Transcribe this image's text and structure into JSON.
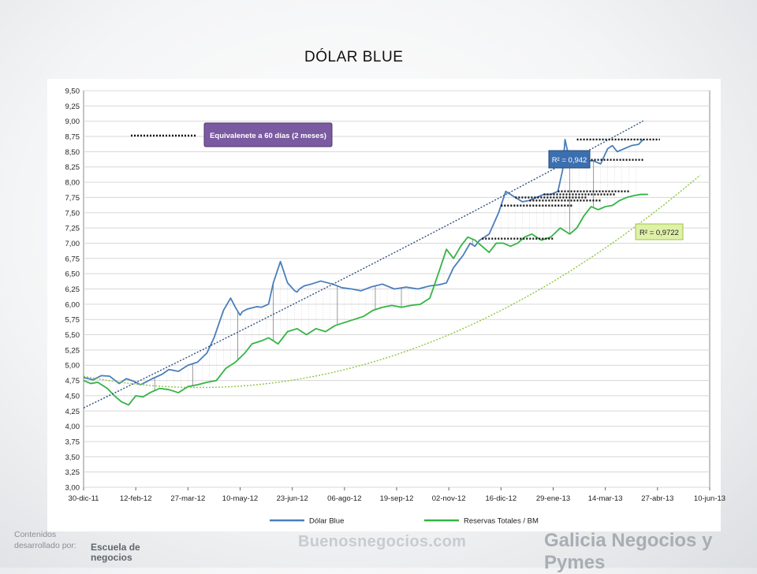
{
  "slide": {
    "title": "DÓLAR BLUE",
    "footer_contenidos": "Contenidos",
    "footer_desarrollado": "desarrollado por:",
    "footer_brand_line1": "Escuela de",
    "footer_brand_line2": "negocios",
    "logo_mid": "Buenosnegocios.com",
    "logo_right": "Galicia Negocios y Pymes"
  },
  "chart_data": {
    "type": "line",
    "title": "",
    "xlabel": "",
    "ylabel": "",
    "ylim": [
      3.0,
      9.5
    ],
    "y_ticks": [
      "3,00",
      "3,25",
      "3,50",
      "3,75",
      "4,00",
      "4,25",
      "4,50",
      "4,75",
      "5,00",
      "5,25",
      "5,50",
      "5,75",
      "6,00",
      "6,25",
      "6,50",
      "6,75",
      "7,00",
      "7,25",
      "7,50",
      "7,75",
      "8,00",
      "8,25",
      "8,50",
      "8,75",
      "9,00",
      "9,25",
      "9,50"
    ],
    "x_ticks": [
      "30-dic-11",
      "12-feb-12",
      "27-mar-12",
      "10-may-12",
      "23-jun-12",
      "06-ago-12",
      "19-sep-12",
      "02-nov-12",
      "16-dic-12",
      "29-ene-13",
      "14-mar-13",
      "27-abr-13",
      "10-jun-13"
    ],
    "xlim_days": [
      0,
      528
    ],
    "grid": true,
    "legend_position": "bottom",
    "series": [
      {
        "name": "Dólar Blue",
        "color": "#4a7ebb",
        "x_days": [
          0,
          8,
          15,
          22,
          30,
          36,
          42,
          48,
          52,
          58,
          66,
          72,
          80,
          88,
          96,
          104,
          110,
          118,
          124,
          128,
          132,
          134,
          136,
          138,
          142,
          146,
          150,
          156,
          160,
          166,
          172,
          178,
          180,
          182,
          186,
          192,
          200,
          210,
          218,
          226,
          234,
          242,
          252,
          262,
          272,
          282,
          292,
          300,
          306,
          312,
          320,
          326,
          330,
          334,
          338,
          342,
          350,
          356,
          364,
          370,
          376,
          382,
          388,
          394,
          400,
          404,
          406,
          410,
          416,
          424,
          430,
          436,
          442,
          446,
          450,
          456,
          462,
          468,
          472
        ],
        "y": [
          4.8,
          4.76,
          4.83,
          4.82,
          4.7,
          4.78,
          4.74,
          4.68,
          4.72,
          4.78,
          4.85,
          4.93,
          4.9,
          5.0,
          5.05,
          5.2,
          5.45,
          5.9,
          6.1,
          5.95,
          5.82,
          5.88,
          5.9,
          5.92,
          5.94,
          5.96,
          5.95,
          6.0,
          6.35,
          6.7,
          6.35,
          6.22,
          6.2,
          6.25,
          6.3,
          6.33,
          6.38,
          6.33,
          6.27,
          6.25,
          6.22,
          6.28,
          6.33,
          6.25,
          6.28,
          6.25,
          6.3,
          6.32,
          6.35,
          6.6,
          6.8,
          7.0,
          6.95,
          7.05,
          7.1,
          7.15,
          7.5,
          7.85,
          7.75,
          7.68,
          7.7,
          7.75,
          7.8,
          7.8,
          7.85,
          8.2,
          8.7,
          8.35,
          8.4,
          8.35,
          8.35,
          8.3,
          8.55,
          8.6,
          8.5,
          8.55,
          8.6,
          8.62,
          8.7
        ]
      },
      {
        "name": "Reservas Totales / BM",
        "color": "#33b444",
        "x_days": [
          0,
          6,
          12,
          20,
          26,
          32,
          38,
          44,
          50,
          56,
          64,
          72,
          80,
          88,
          96,
          104,
          112,
          120,
          128,
          136,
          142,
          150,
          156,
          164,
          172,
          180,
          188,
          196,
          204,
          212,
          220,
          228,
          236,
          244,
          252,
          260,
          268,
          276,
          284,
          292,
          300,
          306,
          312,
          318,
          324,
          330,
          336,
          342,
          348,
          354,
          360,
          366,
          372,
          378,
          386,
          394,
          402,
          410,
          416,
          422,
          428,
          434,
          440,
          446,
          452,
          458,
          464,
          470,
          476
        ],
        "y": [
          4.75,
          4.7,
          4.72,
          4.62,
          4.5,
          4.4,
          4.35,
          4.5,
          4.48,
          4.55,
          4.62,
          4.6,
          4.55,
          4.65,
          4.68,
          4.72,
          4.75,
          4.95,
          5.05,
          5.2,
          5.35,
          5.4,
          5.45,
          5.35,
          5.55,
          5.6,
          5.5,
          5.6,
          5.55,
          5.65,
          5.7,
          5.75,
          5.8,
          5.9,
          5.95,
          5.98,
          5.95,
          5.98,
          6.0,
          6.1,
          6.55,
          6.9,
          6.75,
          6.95,
          7.1,
          7.05,
          6.95,
          6.85,
          7.0,
          7.0,
          6.95,
          7.0,
          7.1,
          7.15,
          7.05,
          7.1,
          7.25,
          7.15,
          7.25,
          7.45,
          7.6,
          7.55,
          7.6,
          7.62,
          7.7,
          7.75,
          7.78,
          7.8,
          7.8
        ]
      }
    ],
    "trendlines": [
      {
        "series": "Dólar Blue",
        "color": "#2f4f7f",
        "x_range": [
          0,
          474
        ],
        "coeffs": [
          4.3,
          0.0094,
          1.2e-06
        ]
      },
      {
        "series": "Reservas Totales / BM",
        "color": "#8dc63f",
        "x_range": [
          0,
          522
        ],
        "coeffs": [
          4.82,
          -0.0038,
          1.95e-05
        ]
      }
    ],
    "annotations": {
      "callout": "Equivalenete a 60 días (2 meses)",
      "r2_blue": "R² = 0,942",
      "r2_green": "R² = 0,9722"
    },
    "gap_markers_days": [
      412,
      400,
      388,
      376,
      364,
      352,
      336
    ],
    "legend_labels": [
      "Dólar Blue",
      "Reservas Totales / BM"
    ]
  }
}
